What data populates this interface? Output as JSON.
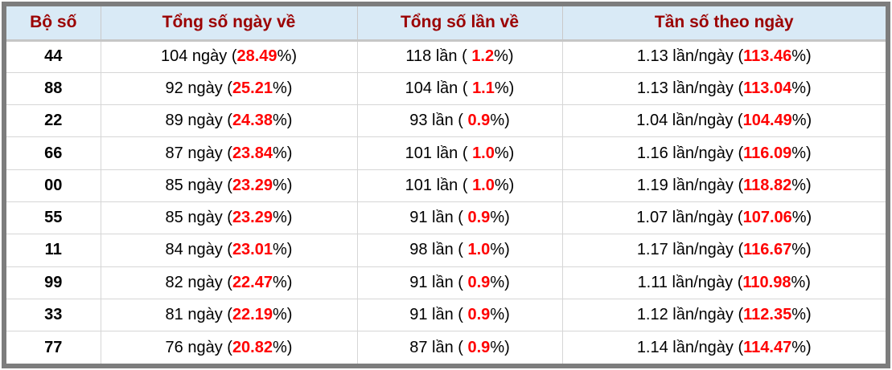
{
  "table": {
    "columns": [
      {
        "label": "Bộ số"
      },
      {
        "label": "Tổng số ngày về"
      },
      {
        "label": "Tổng số lần về"
      },
      {
        "label": "Tần số theo ngày"
      }
    ],
    "rows": [
      {
        "set": "44",
        "days": [
          "104 ngày (",
          "28.49",
          "%)"
        ],
        "times": [
          "118 lần ( ",
          "1.2",
          "%)"
        ],
        "freq": [
          "1.13 lần/ngày (",
          "113.46",
          "%)"
        ]
      },
      {
        "set": "88",
        "days": [
          "92 ngày (",
          "25.21",
          "%)"
        ],
        "times": [
          "104 lần ( ",
          "1.1",
          "%)"
        ],
        "freq": [
          "1.13 lần/ngày (",
          "113.04",
          "%)"
        ]
      },
      {
        "set": "22",
        "days": [
          "89 ngày (",
          "24.38",
          "%)"
        ],
        "times": [
          "93 lần ( ",
          "0.9",
          "%)"
        ],
        "freq": [
          "1.04 lần/ngày (",
          "104.49",
          "%)"
        ]
      },
      {
        "set": "66",
        "days": [
          "87 ngày (",
          "23.84",
          "%)"
        ],
        "times": [
          "101 lần ( ",
          "1.0",
          "%)"
        ],
        "freq": [
          "1.16 lần/ngày (",
          "116.09",
          "%)"
        ]
      },
      {
        "set": "00",
        "days": [
          "85 ngày (",
          "23.29",
          "%)"
        ],
        "times": [
          "101 lần ( ",
          "1.0",
          "%)"
        ],
        "freq": [
          "1.19 lần/ngày (",
          "118.82",
          "%)"
        ]
      },
      {
        "set": "55",
        "days": [
          "85 ngày (",
          "23.29",
          "%)"
        ],
        "times": [
          "91 lần ( ",
          "0.9",
          "%)"
        ],
        "freq": [
          "1.07 lần/ngày (",
          "107.06",
          "%)"
        ]
      },
      {
        "set": "11",
        "days": [
          "84 ngày (",
          "23.01",
          "%)"
        ],
        "times": [
          "98 lần ( ",
          "1.0",
          "%)"
        ],
        "freq": [
          "1.17 lần/ngày (",
          "116.67",
          "%)"
        ]
      },
      {
        "set": "99",
        "days": [
          "82 ngày (",
          "22.47",
          "%)"
        ],
        "times": [
          "91 lần ( ",
          "0.9",
          "%)"
        ],
        "freq": [
          "1.11 lần/ngày (",
          "110.98",
          "%)"
        ]
      },
      {
        "set": "33",
        "days": [
          "81 ngày (",
          "22.19",
          "%)"
        ],
        "times": [
          "91 lần ( ",
          "0.9",
          "%)"
        ],
        "freq": [
          "1.12 lần/ngày (",
          "112.35",
          "%)"
        ]
      },
      {
        "set": "77",
        "days": [
          "76 ngày (",
          "20.82",
          "%)"
        ],
        "times": [
          "87 lần ( ",
          "0.9",
          "%)"
        ],
        "freq": [
          "1.14 lần/ngày (",
          "114.47",
          "%)"
        ]
      }
    ]
  },
  "colors": {
    "header_background": "#d9eaf6",
    "header_text": "#9b0000",
    "highlight_percent": "#ff0000",
    "frame_border": "#7d7d7d",
    "grid_line": "#d6d6d6",
    "body_text": "#000000"
  }
}
